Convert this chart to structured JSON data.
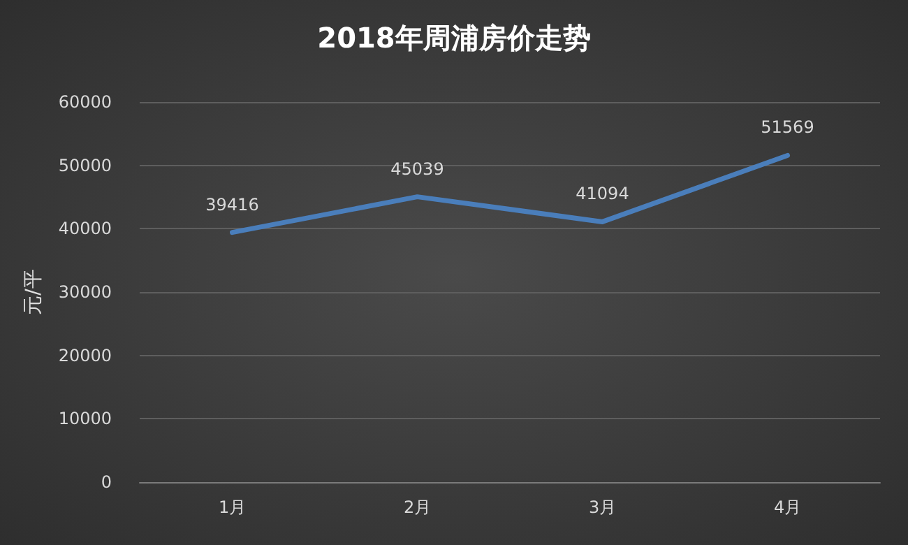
{
  "chart_data": {
    "type": "line",
    "title": "2018年周浦房价走势",
    "ylabel": "元/平",
    "categories": [
      "1月",
      "2月",
      "3月",
      "4月"
    ],
    "series": [
      {
        "color": "#4a7ebb",
        "values": [
          39416,
          45039,
          41094,
          51569
        ]
      }
    ],
    "ylim": [
      0,
      60000
    ],
    "yticks": [
      0,
      10000,
      20000,
      30000,
      40000,
      50000,
      60000
    ],
    "grid": "y",
    "data_labels": true,
    "marker": "none",
    "line_style": "solid"
  }
}
